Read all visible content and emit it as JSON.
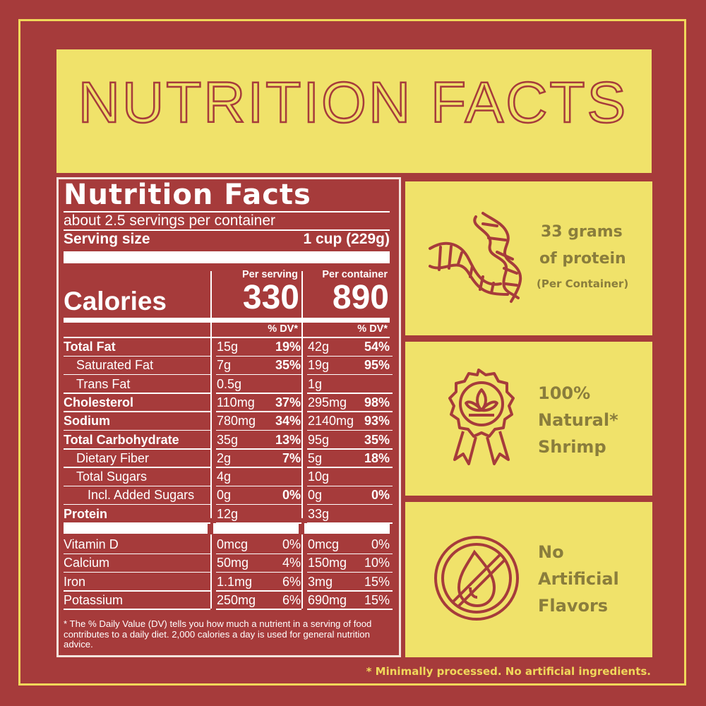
{
  "banner": {
    "title": "NUTRITION FACTS"
  },
  "label": {
    "title": "Nutrition Facts",
    "servings_per_container": "about 2.5 servings per container",
    "serving_size_label": "Serving size",
    "serving_size_value": "1 cup (229g)",
    "per_serving_header": "Per serving",
    "per_container_header": "Per container",
    "calories_label": "Calories",
    "calories_per_serving": "330",
    "calories_per_container": "890",
    "dv_header": "% DV*",
    "rows": [
      {
        "name": "Total Fat",
        "s_amt": "15g",
        "s_dv": "19%",
        "c_amt": "42g",
        "c_dv": "54%"
      },
      {
        "name": "Saturated Fat",
        "s_amt": "7g",
        "s_dv": "35%",
        "c_amt": "19g",
        "c_dv": "95%"
      },
      {
        "name": "Trans Fat",
        "s_amt": "0.5g",
        "s_dv": "",
        "c_amt": "1g",
        "c_dv": ""
      },
      {
        "name": "Cholesterol",
        "s_amt": "110mg",
        "s_dv": "37%",
        "c_amt": "295mg",
        "c_dv": "98%"
      },
      {
        "name": "Sodium",
        "s_amt": "780mg",
        "s_dv": "34%",
        "c_amt": "2140mg",
        "c_dv": "93%"
      },
      {
        "name": "Total Carbohydrate",
        "s_amt": "35g",
        "s_dv": "13%",
        "c_amt": "95g",
        "c_dv": "35%"
      },
      {
        "name": "Dietary Fiber",
        "s_amt": "2g",
        "s_dv": "7%",
        "c_amt": "5g",
        "c_dv": "18%"
      },
      {
        "name": "Total Sugars",
        "s_amt": "4g",
        "s_dv": "",
        "c_amt": "10g",
        "c_dv": ""
      },
      {
        "name": "Incl. Added Sugars",
        "s_amt": "0g",
        "s_dv": "0%",
        "c_amt": "0g",
        "c_dv": "0%"
      },
      {
        "name": "Protein",
        "s_amt": "12g",
        "s_dv": "",
        "c_amt": "33g",
        "c_dv": ""
      }
    ],
    "vitamins": [
      {
        "name": "Vitamin D",
        "s_amt": "0mcg",
        "s_dv": "0%",
        "c_amt": "0mcg",
        "c_dv": "0%"
      },
      {
        "name": "Calcium",
        "s_amt": "50mg",
        "s_dv": "4%",
        "c_amt": "150mg",
        "c_dv": "10%"
      },
      {
        "name": "Iron",
        "s_amt": "1.1mg",
        "s_dv": "6%",
        "c_amt": "3mg",
        "c_dv": "15%"
      },
      {
        "name": "Potassium",
        "s_amt": "250mg",
        "s_dv": "6%",
        "c_amt": "690mg",
        "c_dv": "15%"
      }
    ],
    "footnote": "* The % Daily Value (DV) tells you how much a nutrient in a serving of food contributes to a daily diet. 2,000 calories a day is used for general nutrition advice."
  },
  "panels": {
    "protein": {
      "line1": "33 grams",
      "line2": "of protein",
      "line3": "(Per Container)",
      "icon": "dna-helix-icon"
    },
    "natural": {
      "line1": "100%",
      "line2": "Natural*",
      "line3": "Shrimp",
      "icon": "leaf-badge-icon"
    },
    "flavors": {
      "line1": "No",
      "line2": "Artificial",
      "line3": "Flavors",
      "icon": "no-drop-icon"
    }
  },
  "disclaimer": "* Minimally processed. No artificial ingredients.",
  "colors": {
    "background": "#a63b3b",
    "panel": "#f0e26a",
    "border": "#f0d85a",
    "panel_text": "#8a7d3c"
  }
}
